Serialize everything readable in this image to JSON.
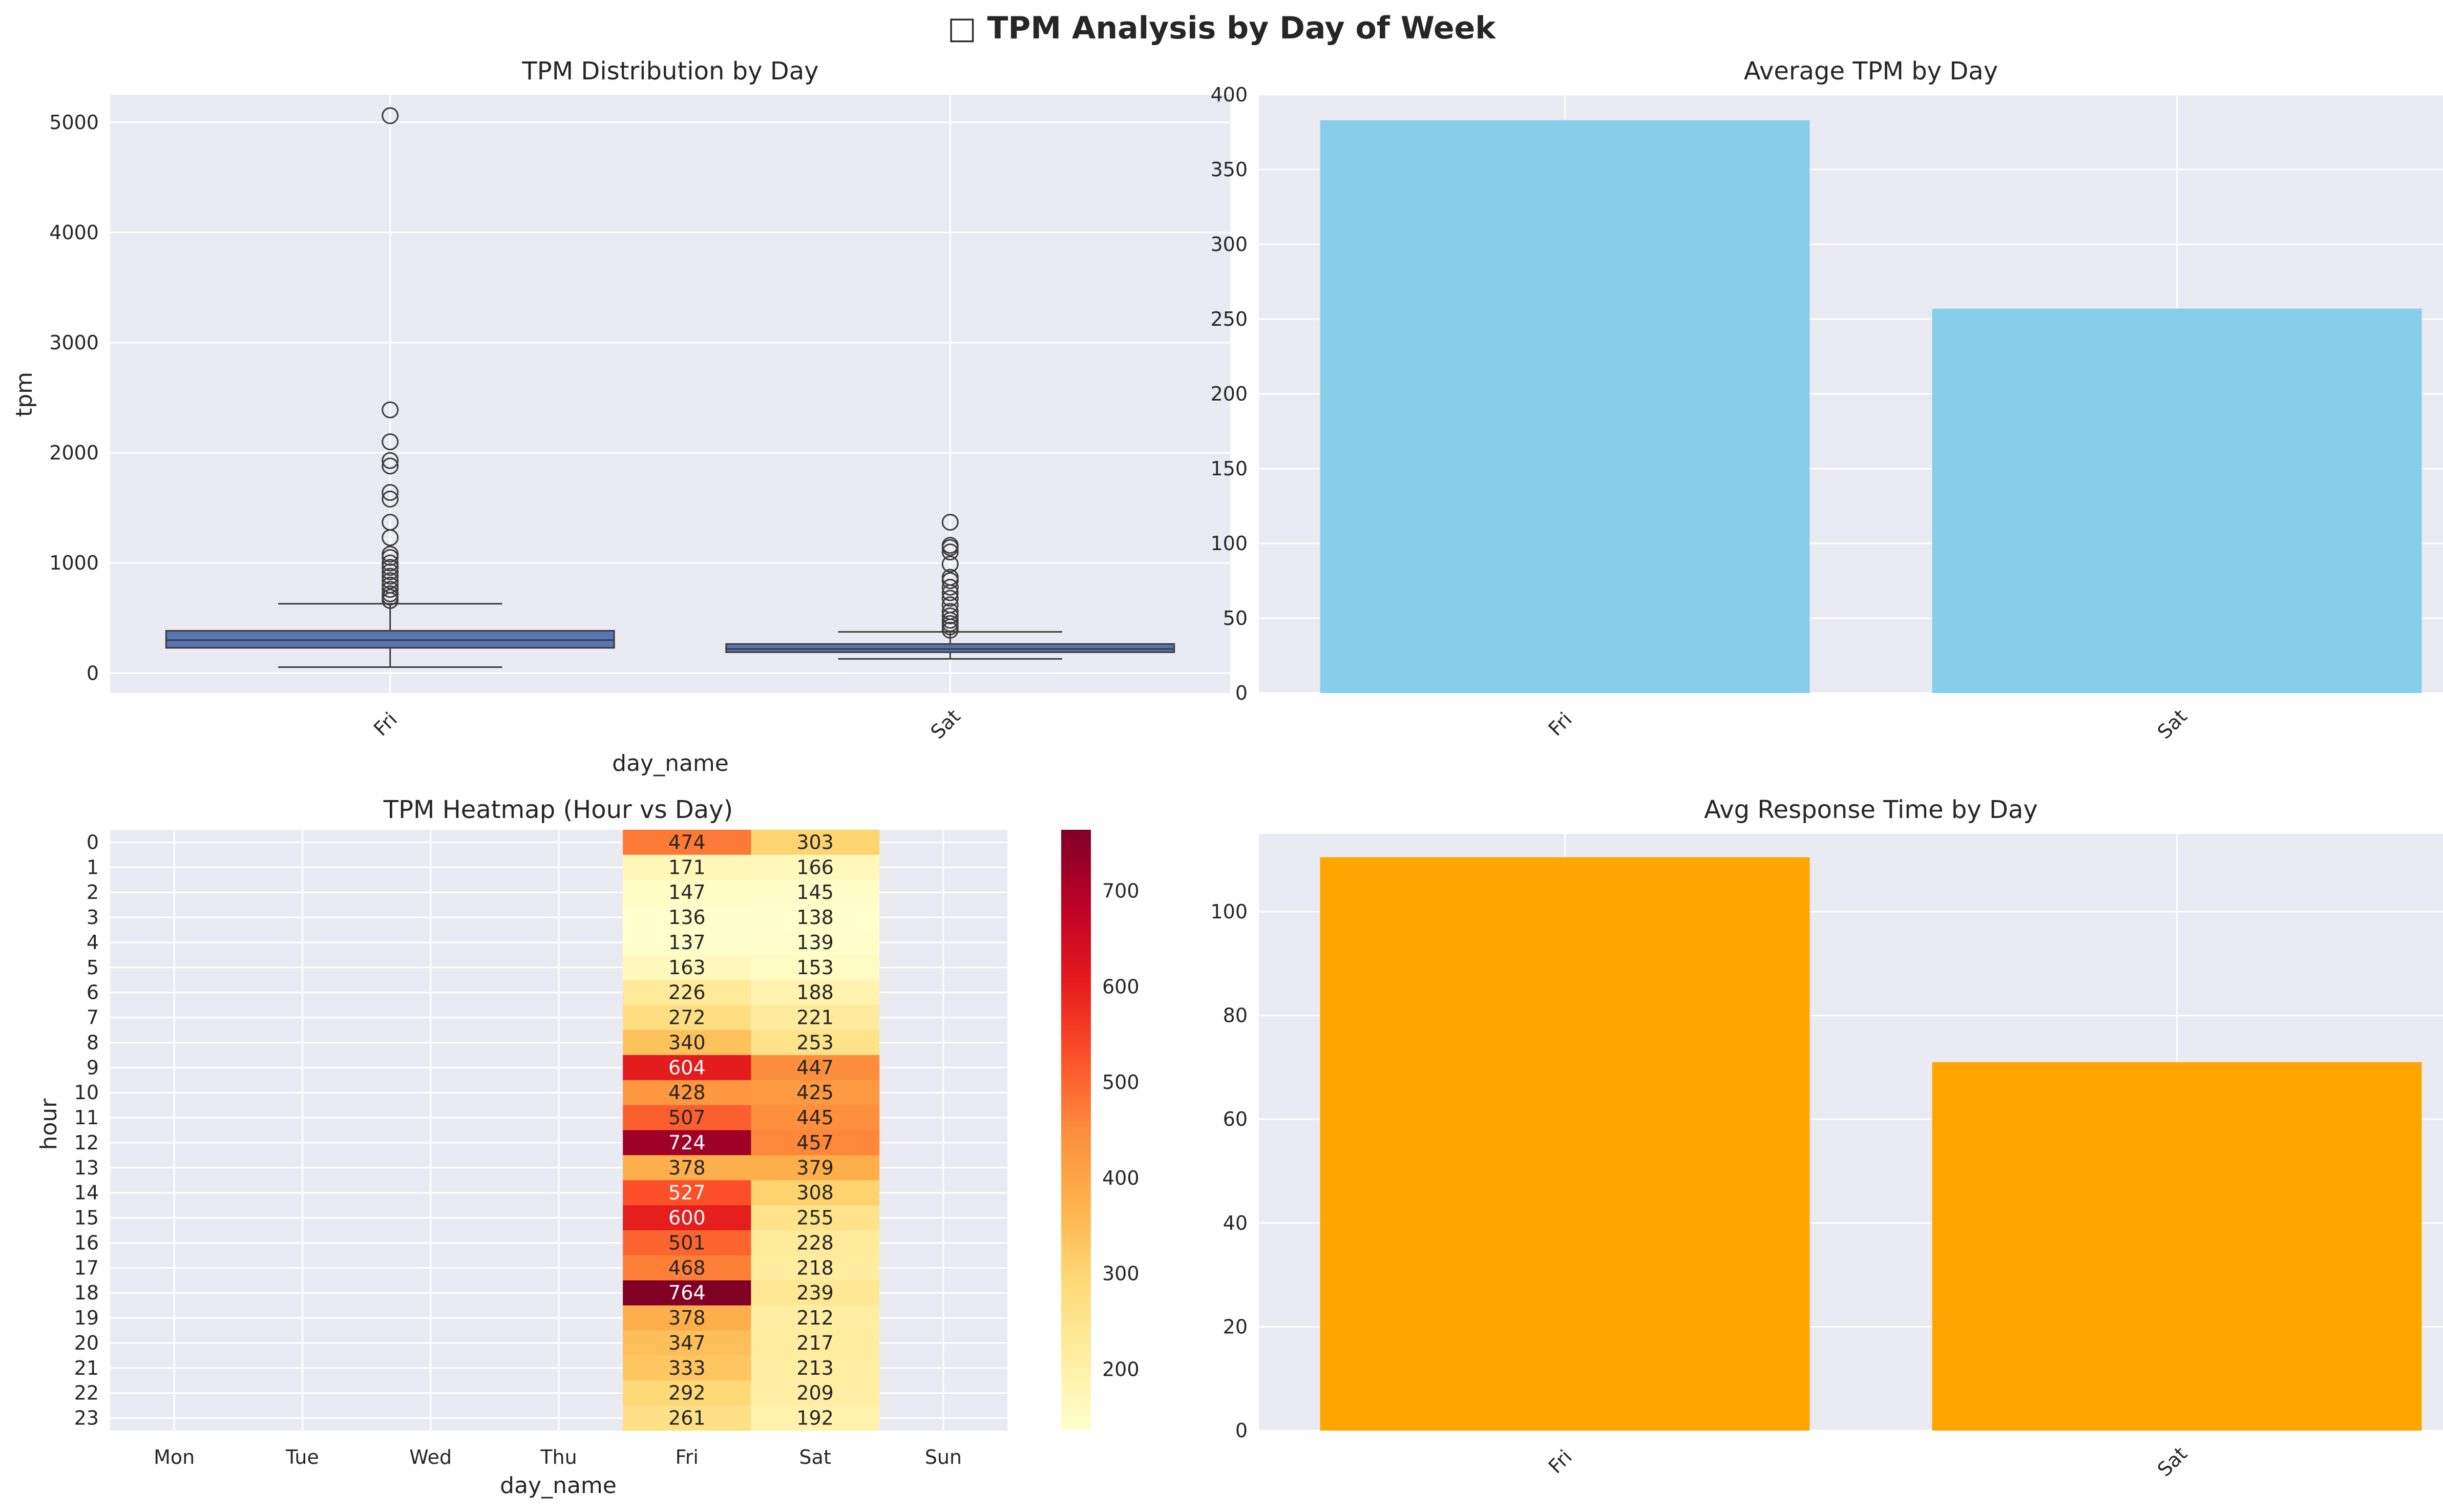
{
  "figure": {
    "suptitle": "□ TPM Analysis by Day of Week"
  },
  "colors": {
    "axes_bg": "#eaeaf2",
    "grid": "#ffffff",
    "box_fill": "#5875b3",
    "box_edge": "#3b3b3b",
    "avg_tpm_bar": "#87ceeb",
    "resp_bar": "#ffa500"
  },
  "chart_data": [
    {
      "id": "box",
      "type": "box",
      "title": "TPM Distribution by Day",
      "xlabel": "day_name",
      "ylabel": "tpm",
      "categories": [
        "Fri",
        "Sat"
      ],
      "ylim": [
        -180,
        5250
      ],
      "yticks": [
        0,
        1000,
        2000,
        3000,
        4000,
        5000
      ],
      "grid": true,
      "boxes": [
        {
          "category": "Fri",
          "whislo": 55,
          "q1": 230,
          "median": 300,
          "q3": 385,
          "whishi": 630,
          "fliers": [
            660,
            690,
            720,
            760,
            800,
            840,
            880,
            920,
            960,
            1000,
            1050,
            1080,
            1230,
            1370,
            1580,
            1640,
            1880,
            1930,
            2100,
            2390,
            5060
          ]
        },
        {
          "category": "Sat",
          "whislo": 130,
          "q1": 190,
          "median": 220,
          "q3": 265,
          "whishi": 375,
          "fliers": [
            390,
            420,
            450,
            480,
            520,
            560,
            620,
            680,
            730,
            780,
            840,
            870,
            990,
            1100,
            1140,
            1160,
            1370
          ]
        }
      ]
    },
    {
      "id": "avg_tpm",
      "type": "bar",
      "title": "Average TPM by Day",
      "categories": [
        "Fri",
        "Sat"
      ],
      "values": [
        383,
        257
      ],
      "ylim": [
        0,
        400
      ],
      "yticks": [
        0,
        50,
        100,
        150,
        200,
        250,
        300,
        350,
        400
      ],
      "grid": true
    },
    {
      "id": "heatmap",
      "type": "heatmap",
      "title": "TPM Heatmap (Hour vs Day)",
      "xlabel": "day_name",
      "ylabel": "hour",
      "x": [
        "Mon",
        "Tue",
        "Wed",
        "Thu",
        "Fri",
        "Sat",
        "Sun"
      ],
      "y": [
        "0",
        "1",
        "2",
        "3",
        "4",
        "5",
        "6",
        "7",
        "8",
        "9",
        "10",
        "11",
        "12",
        "13",
        "14",
        "15",
        "16",
        "17",
        "18",
        "19",
        "20",
        "21",
        "22",
        "23"
      ],
      "values": [
        [
          null,
          null,
          null,
          null,
          474,
          303,
          null
        ],
        [
          null,
          null,
          null,
          null,
          171,
          166,
          null
        ],
        [
          null,
          null,
          null,
          null,
          147,
          145,
          null
        ],
        [
          null,
          null,
          null,
          null,
          136,
          138,
          null
        ],
        [
          null,
          null,
          null,
          null,
          137,
          139,
          null
        ],
        [
          null,
          null,
          null,
          null,
          163,
          153,
          null
        ],
        [
          null,
          null,
          null,
          null,
          226,
          188,
          null
        ],
        [
          null,
          null,
          null,
          null,
          272,
          221,
          null
        ],
        [
          null,
          null,
          null,
          null,
          340,
          253,
          null
        ],
        [
          null,
          null,
          null,
          null,
          604,
          447,
          null
        ],
        [
          null,
          null,
          null,
          null,
          428,
          425,
          null
        ],
        [
          null,
          null,
          null,
          null,
          507,
          445,
          null
        ],
        [
          null,
          null,
          null,
          null,
          724,
          457,
          null
        ],
        [
          null,
          null,
          null,
          null,
          378,
          379,
          null
        ],
        [
          null,
          null,
          null,
          null,
          527,
          308,
          null
        ],
        [
          null,
          null,
          null,
          null,
          600,
          255,
          null
        ],
        [
          null,
          null,
          null,
          null,
          501,
          228,
          null
        ],
        [
          null,
          null,
          null,
          null,
          468,
          218,
          null
        ],
        [
          null,
          null,
          null,
          null,
          764,
          239,
          null
        ],
        [
          null,
          null,
          null,
          null,
          378,
          212,
          null
        ],
        [
          null,
          null,
          null,
          null,
          347,
          217,
          null
        ],
        [
          null,
          null,
          null,
          null,
          333,
          213,
          null
        ],
        [
          null,
          null,
          null,
          null,
          292,
          209,
          null
        ],
        [
          null,
          null,
          null,
          null,
          261,
          192,
          null
        ]
      ],
      "colormap": "YlOrRd",
      "vmin": 136,
      "vmax": 764,
      "colorbar_ticks": [
        200,
        300,
        400,
        500,
        600,
        700
      ]
    },
    {
      "id": "resp",
      "type": "bar",
      "title": "Avg Response Time by Day",
      "categories": [
        "Fri",
        "Sat"
      ],
      "values": [
        110.5,
        71
      ],
      "ylim": [
        0,
        115
      ],
      "yticks": [
        0,
        20,
        40,
        60,
        80,
        100
      ],
      "grid": true
    }
  ]
}
